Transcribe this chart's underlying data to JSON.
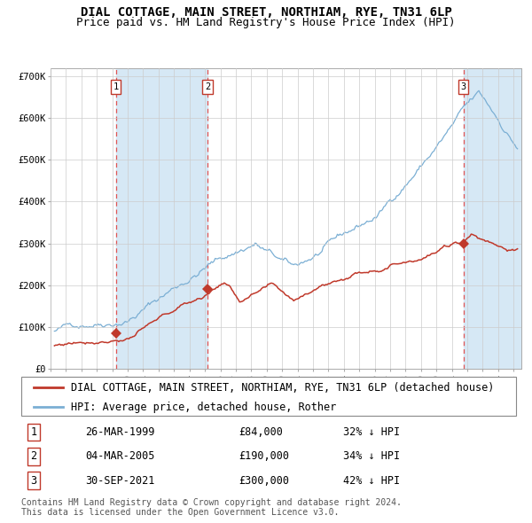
{
  "title": "DIAL COTTAGE, MAIN STREET, NORTHIAM, RYE, TN31 6LP",
  "subtitle": "Price paid vs. HM Land Registry's House Price Index (HPI)",
  "xlim_start": 1995.25,
  "xlim_end": 2025.5,
  "ylim": [
    0,
    720000
  ],
  "yticks": [
    0,
    100000,
    200000,
    300000,
    400000,
    500000,
    600000,
    700000
  ],
  "ytick_labels": [
    "£0",
    "£100K",
    "£200K",
    "£300K",
    "£400K",
    "£500K",
    "£600K",
    "£700K"
  ],
  "sale_dates": [
    1999.23,
    2005.17,
    2021.75
  ],
  "sale_prices": [
    84000,
    190000,
    300000
  ],
  "sale_labels": [
    "1",
    "2",
    "3"
  ],
  "hpi_color": "#7bafd4",
  "price_color": "#c0392b",
  "shade_color": "#d6e8f5",
  "dashed_color": "#e05555",
  "background_color": "#ffffff",
  "grid_color": "#cccccc",
  "legend_line1": "DIAL COTTAGE, MAIN STREET, NORTHIAM, RYE, TN31 6LP (detached house)",
  "legend_line2": "HPI: Average price, detached house, Rother",
  "table_rows": [
    {
      "label": "1",
      "date": "26-MAR-1999",
      "price": "£84,000",
      "hpi": "32% ↓ HPI"
    },
    {
      "label": "2",
      "date": "04-MAR-2005",
      "price": "£190,000",
      "hpi": "34% ↓ HPI"
    },
    {
      "label": "3",
      "date": "30-SEP-2021",
      "price": "£300,000",
      "hpi": "42% ↓ HPI"
    }
  ],
  "footnote": "Contains HM Land Registry data © Crown copyright and database right 2024.\nThis data is licensed under the Open Government Licence v3.0.",
  "title_fontsize": 10,
  "subtitle_fontsize": 9,
  "tick_fontsize": 7.5,
  "legend_fontsize": 8.5,
  "table_fontsize": 8.5,
  "footnote_fontsize": 7
}
